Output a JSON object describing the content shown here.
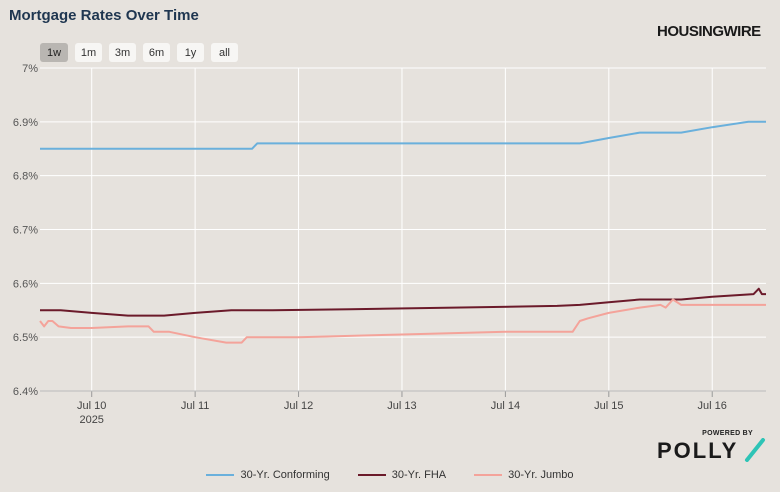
{
  "header": {
    "title": "Mortgage Rates Over Time",
    "brand": "HOUSINGWIRE"
  },
  "range_buttons": [
    "1w",
    "1m",
    "3m",
    "6m",
    "1y",
    "all"
  ],
  "active_range": "1w",
  "sponsor": {
    "powered_by": "POWERED BY",
    "name": "POLLY"
  },
  "chart_data": {
    "type": "line",
    "title": "Mortgage Rates Over Time",
    "xlabel": "",
    "ylabel": "",
    "x_ticks": [
      {
        "label": "Jul 10",
        "sub": "2025",
        "x": 10
      },
      {
        "label": "Jul 11",
        "sub": "",
        "x": 11
      },
      {
        "label": "Jul 12",
        "sub": "",
        "x": 12
      },
      {
        "label": "Jul 13",
        "sub": "",
        "x": 13
      },
      {
        "label": "Jul 14",
        "sub": "",
        "x": 14
      },
      {
        "label": "Jul 15",
        "sub": "",
        "x": 15
      },
      {
        "label": "Jul 16",
        "sub": "",
        "x": 16
      }
    ],
    "y_ticks": [
      "6.4%",
      "6.5%",
      "6.6%",
      "6.7%",
      "6.8%",
      "6.9%",
      "7%"
    ],
    "xlim": [
      9.5,
      16.52
    ],
    "ylim": [
      6.4,
      7.0
    ],
    "grid": true,
    "legend_position": "bottom",
    "series": [
      {
        "name": "30-Yr. Conforming",
        "color": "#6ab0dc",
        "x": [
          9.5,
          11.55,
          11.6,
          14.72,
          15.0,
          15.3,
          15.7,
          16.0,
          16.35,
          16.52
        ],
        "y": [
          6.85,
          6.85,
          6.86,
          6.86,
          6.87,
          6.88,
          6.88,
          6.89,
          6.9,
          6.9
        ]
      },
      {
        "name": "30-Yr. FHA",
        "color": "#6b1a2a",
        "x": [
          9.5,
          9.7,
          10.0,
          10.35,
          10.7,
          11.0,
          11.35,
          11.75,
          12.5,
          13.5,
          14.5,
          14.72,
          15.0,
          15.3,
          15.7,
          16.0,
          16.4,
          16.45,
          16.48,
          16.52
        ],
        "y": [
          6.55,
          6.55,
          6.545,
          6.54,
          6.54,
          6.545,
          6.55,
          6.55,
          6.552,
          6.555,
          6.558,
          6.56,
          6.565,
          6.57,
          6.57,
          6.575,
          6.58,
          6.59,
          6.58,
          6.58
        ]
      },
      {
        "name": "30-Yr. Jumbo",
        "color": "#f4a39a",
        "x": [
          9.5,
          9.54,
          9.58,
          9.62,
          9.68,
          9.8,
          10.0,
          10.35,
          10.55,
          10.6,
          10.75,
          11.0,
          11.3,
          11.45,
          11.5,
          12.0,
          13.0,
          14.0,
          14.65,
          14.72,
          14.8,
          15.0,
          15.3,
          15.5,
          15.55,
          15.62,
          15.7,
          16.0,
          16.52
        ],
        "y": [
          6.53,
          6.52,
          6.53,
          6.53,
          6.52,
          6.517,
          6.517,
          6.52,
          6.52,
          6.51,
          6.51,
          6.5,
          6.49,
          6.49,
          6.5,
          6.5,
          6.505,
          6.51,
          6.51,
          6.53,
          6.535,
          6.545,
          6.555,
          6.56,
          6.555,
          6.57,
          6.56,
          6.56,
          6.56
        ]
      }
    ]
  }
}
